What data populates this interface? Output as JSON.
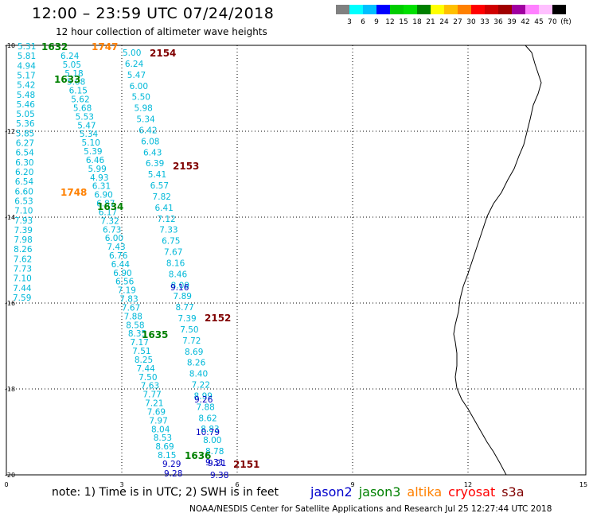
{
  "header": {
    "title": "12:00 – 23:59 UTC 07/24/2018",
    "subtitle": "12 hour collection of altimeter wave heights"
  },
  "legend": {
    "colors": [
      "#808080",
      "#00ffff",
      "#00bfff",
      "#0000ff",
      "#00cc00",
      "#00e000",
      "#008000",
      "#ffff00",
      "#ffc000",
      "#ff8000",
      "#ff0000",
      "#d00000",
      "#a00000",
      "#a000a0",
      "#ff80ff",
      "#ffc0ff",
      "#000000"
    ],
    "labels": [
      "3",
      "6",
      "9",
      "12",
      "15",
      "18",
      "21",
      "24",
      "27",
      "30",
      "33",
      "36",
      "39",
      "42",
      "45",
      "70",
      "(ft)"
    ]
  },
  "axes": {
    "x_ticks": [
      "0",
      "3",
      "6",
      "9",
      "12",
      "15"
    ],
    "y_ticks": [
      "-10",
      "-12",
      "-14",
      "-16",
      "-18",
      "-20"
    ]
  },
  "annotations": [
    {
      "text": "1632",
      "color": "#008000"
    },
    {
      "text": "1747",
      "color": "#ff8000"
    },
    {
      "text": "2154",
      "color": "#800000"
    },
    {
      "text": "1633",
      "color": "#008000"
    },
    {
      "text": "2153",
      "color": "#800000"
    },
    {
      "text": "1748",
      "color": "#ff8000"
    },
    {
      "text": "1634",
      "color": "#008000"
    },
    {
      "text": "2152",
      "color": "#800000"
    },
    {
      "text": "1635",
      "color": "#008000"
    },
    {
      "text": "1636",
      "color": "#008000"
    },
    {
      "text": "2151",
      "color": "#800000"
    }
  ],
  "tracks": {
    "track_a": {
      "color": "#00b8d8",
      "values": [
        "5.31",
        "5.81",
        "4.94",
        "5.17",
        "5.42",
        "5.48",
        "5.46",
        "5.05",
        "5.36",
        "5.85",
        "6.27",
        "6.54",
        "6.30",
        "6.20",
        "6.54",
        "6.60",
        "6.53",
        "7.10",
        "7.93",
        "7.39",
        "7.98",
        "8.26",
        "7.62",
        "7.73",
        "7.10",
        "7.44",
        "7.59"
      ]
    },
    "track_b": {
      "color": "#00b8d8",
      "values": [
        "6.24",
        "5.05",
        "5.18",
        "5.08",
        "6.15",
        "5.62",
        "5.68",
        "5.53",
        "5.47",
        "5.34",
        "5.10",
        "5.39",
        "6.46",
        "5.99",
        "4.93",
        "6.31",
        "6.90",
        "6.87",
        "6.17",
        "7.32",
        "6.73",
        "6.00",
        "7.43",
        "6.76",
        "6.44",
        "6.90",
        "6.56",
        "7.19",
        "7.83",
        "7.67",
        "7.88",
        "8.58",
        "8.35",
        "7.17",
        "7.51",
        "8.25",
        "7.44",
        "7.50",
        "7.63",
        "7.77",
        "7.21",
        "7.69",
        "7.97",
        "8.04",
        "8.53",
        "8.69",
        "8.15"
      ]
    },
    "track_b_dark": {
      "color": "#0000c0",
      "values": [
        "9.29",
        "9.28"
      ]
    },
    "track_c": {
      "color": "#00b8d8",
      "values": [
        "5.00",
        "6.24",
        "5.47",
        "6.00",
        "5.50",
        "5.98",
        "5.34",
        "6.42",
        "6.08",
        "6.43",
        "6.39",
        "5.41",
        "6.57",
        "7.82",
        "6.41",
        "7.12",
        "7.33",
        "6.75",
        "7.67",
        "8.16",
        "8.46",
        "8.09",
        "7.89",
        "8.77",
        "7.39",
        "7.50",
        "7.72",
        "8.69",
        "8.26",
        "8.40",
        "7.22",
        "8.99",
        "7.88",
        "8.62",
        "8.83",
        "8.00",
        "8.78"
      ]
    },
    "track_c_dark": {
      "color": "#0000c0",
      "values": [
        "9.16",
        "9.26",
        "10.79",
        "9.31",
        "9.21",
        "9.38"
      ]
    }
  },
  "footer": {
    "note": "note:  1) Time is in UTC;  2) SWH is in feet",
    "satellites": [
      {
        "name": "jason2",
        "color": "#0000cc"
      },
      {
        "name": "jason3",
        "color": "#008000"
      },
      {
        "name": "altika",
        "color": "#ff8000"
      },
      {
        "name": "cryosat",
        "color": "#ff0000"
      },
      {
        "name": "s3a",
        "color": "#800000"
      }
    ],
    "credit": "NOAA/NESDIS Center for Satellite Applications and Research     Jul 25 12:27:44 UTC 2018"
  }
}
